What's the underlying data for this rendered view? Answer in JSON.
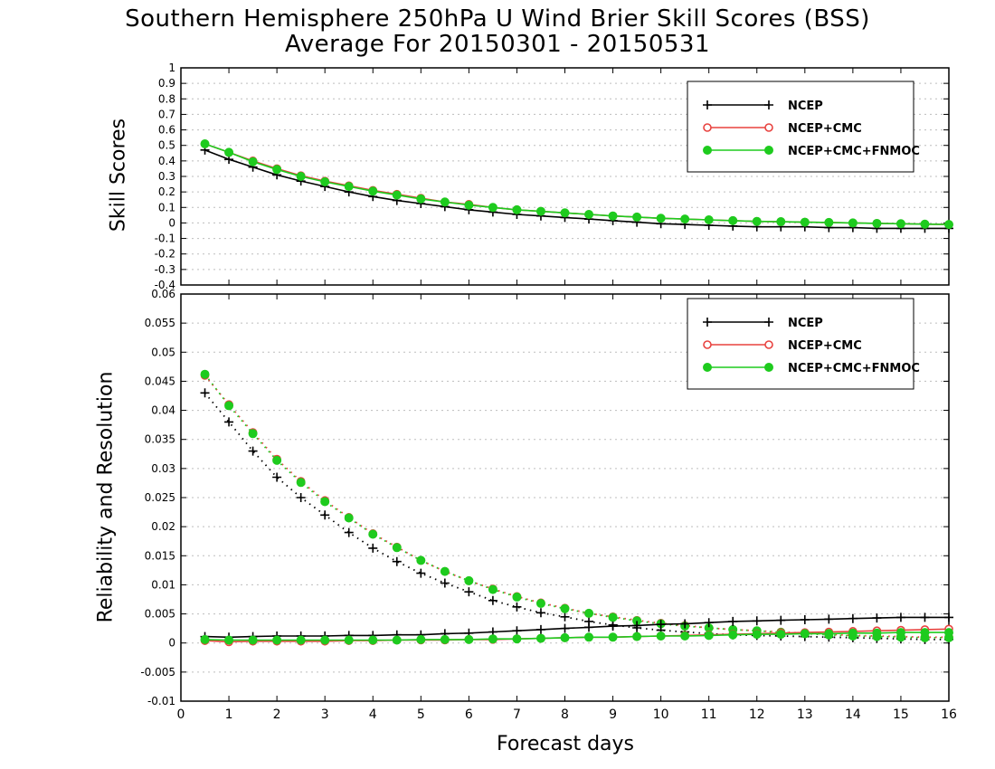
{
  "titles": {
    "line1": "Southern Hemisphere 250hPa U Wind Brier Skill Scores (BSS)",
    "line2": "Average For 20150301 - 20150531"
  },
  "xlabel": "Forecast days",
  "colors": {
    "NCEP": "#000000",
    "NCEP+CMC": "#e8423f",
    "NCEP+CMC+FNMOC": "#1ecb1e"
  },
  "chart_data": [
    {
      "type": "line",
      "ylabel": "Skill Scores",
      "xlim": [
        0,
        16
      ],
      "ylim": [
        -0.4,
        1.0
      ],
      "xticks": [
        0,
        1,
        2,
        3,
        4,
        5,
        6,
        7,
        8,
        9,
        10,
        11,
        12,
        13,
        14,
        15,
        16
      ],
      "yticks": [
        -0.4,
        -0.3,
        -0.2,
        -0.1,
        0,
        0.1,
        0.2,
        0.3,
        0.4,
        0.5,
        0.6,
        0.7,
        0.8,
        0.9,
        1
      ],
      "ytick_labels": [
        "-0.4",
        "-0.3",
        "-0.2",
        "-0.1",
        "0",
        "0.1",
        "0.2",
        "0.3",
        "0.4",
        "0.5",
        "0.6",
        "0.7",
        "0.8",
        "0.9",
        "1"
      ],
      "grid": true,
      "legend_position": "top-right",
      "x": [
        0.5,
        1,
        1.5,
        2,
        2.5,
        3,
        3.5,
        4,
        4.5,
        5,
        5.5,
        6,
        6.5,
        7,
        7.5,
        8,
        8.5,
        9,
        9.5,
        10,
        10.5,
        11,
        11.5,
        12,
        12.5,
        13,
        13.5,
        14,
        14.5,
        15,
        15.5,
        16
      ],
      "series": [
        {
          "name": "NCEP",
          "marker": "plus",
          "style": "solid",
          "values": [
            0.47,
            0.41,
            0.36,
            0.31,
            0.27,
            0.235,
            0.2,
            0.17,
            0.145,
            0.125,
            0.105,
            0.085,
            0.07,
            0.055,
            0.045,
            0.035,
            0.025,
            0.015,
            0.005,
            -0.005,
            -0.01,
            -0.015,
            -0.02,
            -0.025,
            -0.025,
            -0.025,
            -0.03,
            -0.03,
            -0.035,
            -0.035,
            -0.035,
            -0.035
          ]
        },
        {
          "name": "NCEP+CMC",
          "marker": "open-circle",
          "style": "solid",
          "values": [
            0.51,
            0.455,
            0.4,
            0.35,
            0.305,
            0.27,
            0.24,
            0.21,
            0.185,
            0.16,
            0.135,
            0.12,
            0.1,
            0.085,
            0.075,
            0.065,
            0.055,
            0.045,
            0.038,
            0.03,
            0.025,
            0.02,
            0.015,
            0.01,
            0.008,
            0.005,
            0.003,
            0.0,
            -0.003,
            -0.005,
            -0.008,
            -0.01
          ]
        },
        {
          "name": "NCEP+CMC+FNMOC",
          "marker": "filled-circle",
          "style": "solid",
          "values": [
            0.51,
            0.455,
            0.395,
            0.345,
            0.3,
            0.265,
            0.235,
            0.205,
            0.18,
            0.155,
            0.135,
            0.115,
            0.1,
            0.085,
            0.075,
            0.065,
            0.055,
            0.045,
            0.038,
            0.03,
            0.025,
            0.02,
            0.015,
            0.01,
            0.008,
            0.005,
            0.003,
            0.0,
            -0.003,
            -0.005,
            -0.008,
            -0.01
          ]
        }
      ]
    },
    {
      "type": "line",
      "ylabel": "Reliability and Resolution",
      "xlim": [
        0,
        16
      ],
      "ylim": [
        -0.01,
        0.06
      ],
      "xticks": [
        0,
        1,
        2,
        3,
        4,
        5,
        6,
        7,
        8,
        9,
        10,
        11,
        12,
        13,
        14,
        15,
        16
      ],
      "yticks": [
        -0.01,
        -0.005,
        0,
        0.005,
        0.01,
        0.015,
        0.02,
        0.025,
        0.03,
        0.035,
        0.04,
        0.045,
        0.05,
        0.055,
        0.06
      ],
      "ytick_labels": [
        "-0.01",
        "-0.005",
        "0",
        "0.005",
        "0.01",
        "0.015",
        "0.02",
        "0.025",
        "0.03",
        "0.035",
        "0.04",
        "0.045",
        "0.05",
        "0.055",
        "0.06"
      ],
      "grid": true,
      "legend_position": "top-right",
      "x": [
        0.5,
        1,
        1.5,
        2,
        2.5,
        3,
        3.5,
        4,
        4.5,
        5,
        5.5,
        6,
        6.5,
        7,
        7.5,
        8,
        8.5,
        9,
        9.5,
        10,
        10.5,
        11,
        11.5,
        12,
        12.5,
        13,
        13.5,
        14,
        14.5,
        15,
        15.5,
        16
      ],
      "series": [
        {
          "name": "NCEP",
          "marker": "plus",
          "style": "dotted",
          "measure": "resolution",
          "values": [
            0.043,
            0.038,
            0.033,
            0.0285,
            0.025,
            0.022,
            0.019,
            0.0163,
            0.014,
            0.012,
            0.0103,
            0.0088,
            0.0073,
            0.0062,
            0.0052,
            0.0045,
            0.0037,
            0.0031,
            0.0026,
            0.0022,
            0.0019,
            0.0016,
            0.0014,
            0.0013,
            0.0012,
            0.0011,
            0.001,
            0.0009,
            0.0008,
            0.0007,
            0.0006,
            0.0006
          ]
        },
        {
          "name": "NCEP+CMC",
          "marker": "open-circle",
          "style": "dotted",
          "measure": "resolution",
          "values": [
            0.046,
            0.041,
            0.0362,
            0.0316,
            0.0278,
            0.0245,
            0.0216,
            0.0188,
            0.0165,
            0.0142,
            0.0123,
            0.0107,
            0.0093,
            0.008,
            0.0069,
            0.006,
            0.0051,
            0.0045,
            0.0039,
            0.0034,
            0.003,
            0.0026,
            0.0023,
            0.0021,
            0.0019,
            0.0017,
            0.0015,
            0.0013,
            0.0012,
            0.0011,
            0.001,
            0.001
          ]
        },
        {
          "name": "NCEP+CMC+FNMOC",
          "marker": "filled-circle",
          "style": "dotted",
          "measure": "resolution",
          "values": [
            0.0462,
            0.0408,
            0.036,
            0.0314,
            0.0276,
            0.0243,
            0.0215,
            0.0187,
            0.0164,
            0.0142,
            0.0123,
            0.0107,
            0.0092,
            0.0079,
            0.0068,
            0.0059,
            0.0051,
            0.0044,
            0.0038,
            0.0033,
            0.0029,
            0.0026,
            0.0023,
            0.0021,
            0.0018,
            0.0016,
            0.0014,
            0.0012,
            0.0011,
            0.001,
            0.0009,
            0.0009
          ]
        },
        {
          "name": "NCEP",
          "marker": "plus",
          "style": "solid",
          "measure": "reliability",
          "values": [
            0.0011,
            0.001,
            0.0011,
            0.0012,
            0.0012,
            0.0012,
            0.0013,
            0.0013,
            0.0014,
            0.0014,
            0.0016,
            0.0017,
            0.0019,
            0.0021,
            0.0023,
            0.0025,
            0.0027,
            0.0029,
            0.003,
            0.0032,
            0.0033,
            0.0035,
            0.0037,
            0.0038,
            0.0039,
            0.004,
            0.0041,
            0.0042,
            0.0043,
            0.0044,
            0.0044,
            0.0044
          ]
        },
        {
          "name": "NCEP+CMC",
          "marker": "open-circle",
          "style": "solid",
          "measure": "reliability",
          "values": [
            0.0004,
            0.0002,
            0.0003,
            0.0003,
            0.0003,
            0.0003,
            0.0004,
            0.0004,
            0.0005,
            0.0005,
            0.0005,
            0.0006,
            0.0006,
            0.0007,
            0.0008,
            0.0009,
            0.001,
            0.001,
            0.0011,
            0.0012,
            0.0013,
            0.0014,
            0.0015,
            0.0016,
            0.0017,
            0.0018,
            0.0019,
            0.002,
            0.0021,
            0.0022,
            0.0023,
            0.0024
          ]
        },
        {
          "name": "NCEP+CMC+FNMOC",
          "marker": "filled-circle",
          "style": "solid",
          "measure": "reliability",
          "values": [
            0.0006,
            0.0005,
            0.0005,
            0.0005,
            0.0005,
            0.0005,
            0.0005,
            0.0005,
            0.0005,
            0.0006,
            0.0006,
            0.0006,
            0.0007,
            0.0007,
            0.0008,
            0.0009,
            0.001,
            0.001,
            0.0011,
            0.0012,
            0.0012,
            0.0013,
            0.0014,
            0.0015,
            0.0015,
            0.0016,
            0.0016,
            0.0017,
            0.0017,
            0.0018,
            0.0018,
            0.0018
          ]
        }
      ]
    }
  ]
}
